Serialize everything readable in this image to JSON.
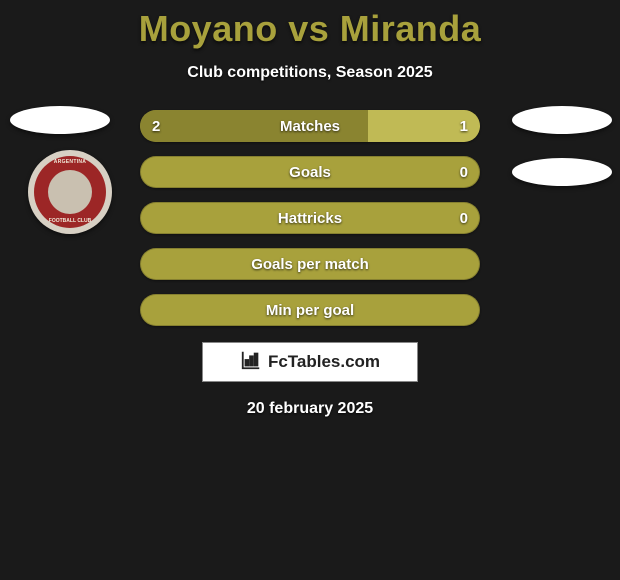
{
  "title": "Moyano vs Miranda",
  "subtitle": "Club competitions, Season 2025",
  "date": "20 february 2025",
  "colors": {
    "background": "#1a1a1a",
    "accent": "#a8a13c",
    "bar_base": "#a8a13c",
    "bar_left": "#8a8430",
    "bar_right": "#c0ba55",
    "text": "#ffffff"
  },
  "badge": {
    "top_text": "ARGENTINA",
    "mid_text": "DEFENSORES",
    "bottom_text": "FOOTBALL CLUB"
  },
  "bars": [
    {
      "label": "Matches",
      "left": "2",
      "right": "1",
      "left_pct": 67,
      "right_pct": 33
    },
    {
      "label": "Goals",
      "left": "",
      "right": "0",
      "left_pct": 0,
      "right_pct": 0
    },
    {
      "label": "Hattricks",
      "left": "",
      "right": "0",
      "left_pct": 0,
      "right_pct": 0
    },
    {
      "label": "Goals per match",
      "left": "",
      "right": "",
      "left_pct": 0,
      "right_pct": 0
    },
    {
      "label": "Min per goal",
      "left": "",
      "right": "",
      "left_pct": 0,
      "right_pct": 0
    }
  ],
  "logo_text": "FcTables.com"
}
